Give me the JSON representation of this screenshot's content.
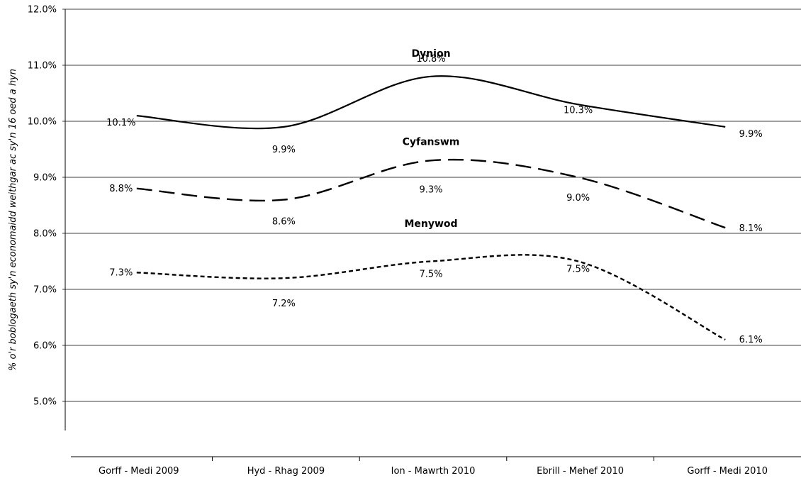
{
  "chart_data": {
    "type": "line",
    "title": "",
    "xlabel": "",
    "ylabel": "% o'r boblogaeth sy'n economaidd weithgar ac sy'n 16 oed a hyn",
    "ylim": [
      5.0,
      12.0
    ],
    "yticks": [
      "5.0%",
      "6.0%",
      "7.0%",
      "8.0%",
      "9.0%",
      "10.0%",
      "11.0%",
      "12.0%"
    ],
    "grid": true,
    "legend": "none",
    "categories": [
      "Gorff - Medi 2009",
      "Hyd - Rhag 2009",
      "Ion - Mawrth 2010",
      "Ebrill - Mehef 2010",
      "Gorff - Medi 2010"
    ],
    "series": [
      {
        "name": "Dynion",
        "values": [
          10.1,
          9.9,
          10.8,
          10.3,
          9.9
        ],
        "labels": [
          "10.1%",
          "9.9%",
          "10.8%",
          "10.3%",
          "9.9%"
        ],
        "style": "solid",
        "color": "#000000"
      },
      {
        "name": "Cyfanswm",
        "values": [
          8.8,
          8.6,
          9.3,
          9.0,
          8.1
        ],
        "labels": [
          "8.8%",
          "8.6%",
          "9.3%",
          "9.0%",
          "8.1%"
        ],
        "style": "dashed",
        "color": "#000000"
      },
      {
        "name": "Menywod",
        "values": [
          7.3,
          7.2,
          7.5,
          7.5,
          6.1
        ],
        "labels": [
          "7.3%",
          "7.2%",
          "7.5%",
          "7.5%",
          "6.1%"
        ],
        "style": "dotted",
        "color": "#000000"
      }
    ]
  }
}
